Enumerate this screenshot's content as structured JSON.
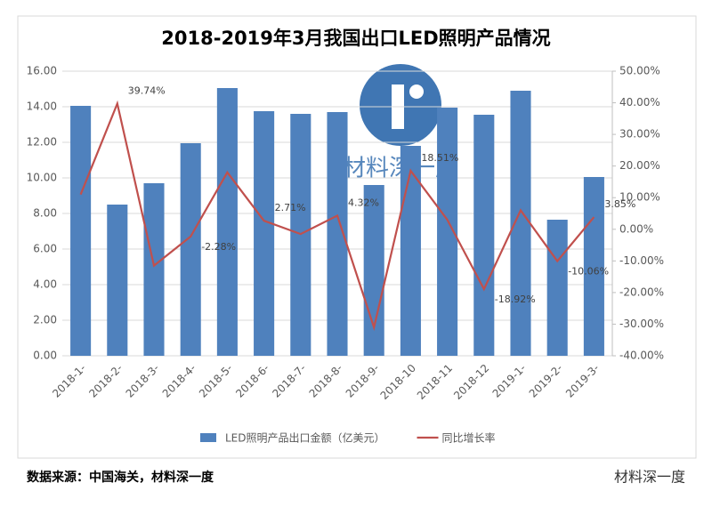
{
  "chart_data": {
    "type": "bar-line",
    "title": "2018-2019年3月我国出口LED照明产品情况",
    "categories": [
      "2018-1-",
      "2018-2-",
      "2018-3-",
      "2018-4-",
      "2018-5-",
      "2018-6-",
      "2018-7-",
      "2018-8-",
      "2018-9-",
      "2018-10",
      "2018-11",
      "2018-12",
      "2019-1-",
      "2019-2-",
      "2019-3-"
    ],
    "series": [
      {
        "name": "LED照明产品出口金额（亿美元）",
        "type": "bar",
        "color": "#4f81bd",
        "values": [
          14.05,
          8.5,
          9.7,
          11.95,
          15.05,
          13.75,
          13.6,
          13.7,
          9.6,
          11.8,
          13.95,
          13.55,
          14.9,
          7.65,
          10.05
        ]
      },
      {
        "name": "同比增长率",
        "type": "line",
        "axis": "y2",
        "color": "#c0504d",
        "values": [
          11,
          39.74,
          -11.5,
          -2.28,
          18,
          2.71,
          -1.5,
          4.32,
          -31,
          18.51,
          3,
          -18.92,
          6,
          -10.06,
          3.85
        ],
        "value_labels": [
          null,
          "39.74%",
          null,
          "-2.28%",
          null,
          "2.71%",
          null,
          "4.32%",
          null,
          "18.51%",
          null,
          "-18.92%",
          null,
          "-10.06%",
          "3.85%"
        ]
      }
    ],
    "ylim": [
      0,
      16
    ],
    "yticks": [
      {
        "value": 0,
        "label": "0.00"
      },
      {
        "value": 2,
        "label": "2.00"
      },
      {
        "value": 4,
        "label": "4.00"
      },
      {
        "value": 6,
        "label": "6.00"
      },
      {
        "value": 8,
        "label": "8.00"
      },
      {
        "value": 10,
        "label": "10.00"
      },
      {
        "value": 12,
        "label": "12.00"
      },
      {
        "value": 14,
        "label": "14.00"
      },
      {
        "value": 16,
        "label": "16.00"
      }
    ],
    "y2lim": [
      -40,
      50
    ],
    "y2ticks": [
      {
        "value": -40,
        "label": "-40.00%"
      },
      {
        "value": -30,
        "label": "-30.00%"
      },
      {
        "value": -20,
        "label": "-20.00%"
      },
      {
        "value": -10,
        "label": "-10.00%"
      },
      {
        "value": 0,
        "label": "0.00%"
      },
      {
        "value": 10,
        "label": "10.00%"
      },
      {
        "value": 20,
        "label": "20.00%"
      },
      {
        "value": 30,
        "label": "30.00%"
      },
      {
        "value": 40,
        "label": "40.00%"
      },
      {
        "value": 50,
        "label": "50.00%"
      }
    ],
    "legend": "bottom"
  },
  "watermark": "材料深一度",
  "source": "数据来源：中国海关，材料深一度",
  "account": "材料深一度"
}
